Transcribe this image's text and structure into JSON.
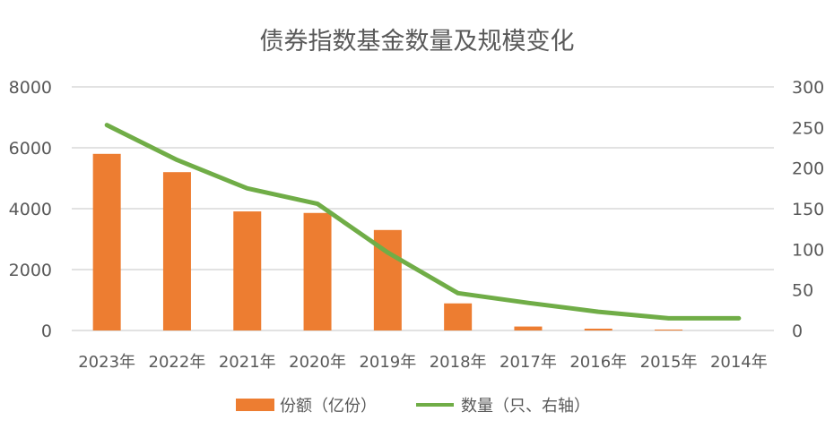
{
  "chart_data": {
    "type": "bar+line",
    "title": "债券指数基金数量及规模变化",
    "categories": [
      "2023年",
      "2022年",
      "2021年",
      "2020年",
      "2019年",
      "2018年",
      "2017年",
      "2016年",
      "2015年",
      "2014年"
    ],
    "series": [
      {
        "name": "份额（亿份）",
        "type": "bar",
        "axis": "left",
        "color": "#ED7D31",
        "values": [
          5800,
          5200,
          3910,
          3860,
          3300,
          890,
          130,
          60,
          30,
          0
        ]
      },
      {
        "name": "数量（只、右轴）",
        "type": "line",
        "axis": "right",
        "color": "#70AD47",
        "values": [
          253,
          210,
          175,
          156,
          96,
          46,
          34,
          23,
          15,
          15
        ]
      }
    ],
    "y_left": {
      "range": [
        0,
        8000
      ],
      "ticks": [
        "0",
        "2000",
        "4000",
        "6000",
        "8000"
      ]
    },
    "y_right": {
      "range": [
        0,
        300
      ],
      "ticks": [
        "0",
        "50",
        "100",
        "150",
        "200",
        "250",
        "300"
      ]
    },
    "grid": true,
    "legend_position": "bottom",
    "gridline_color": "#D9D9D9"
  }
}
